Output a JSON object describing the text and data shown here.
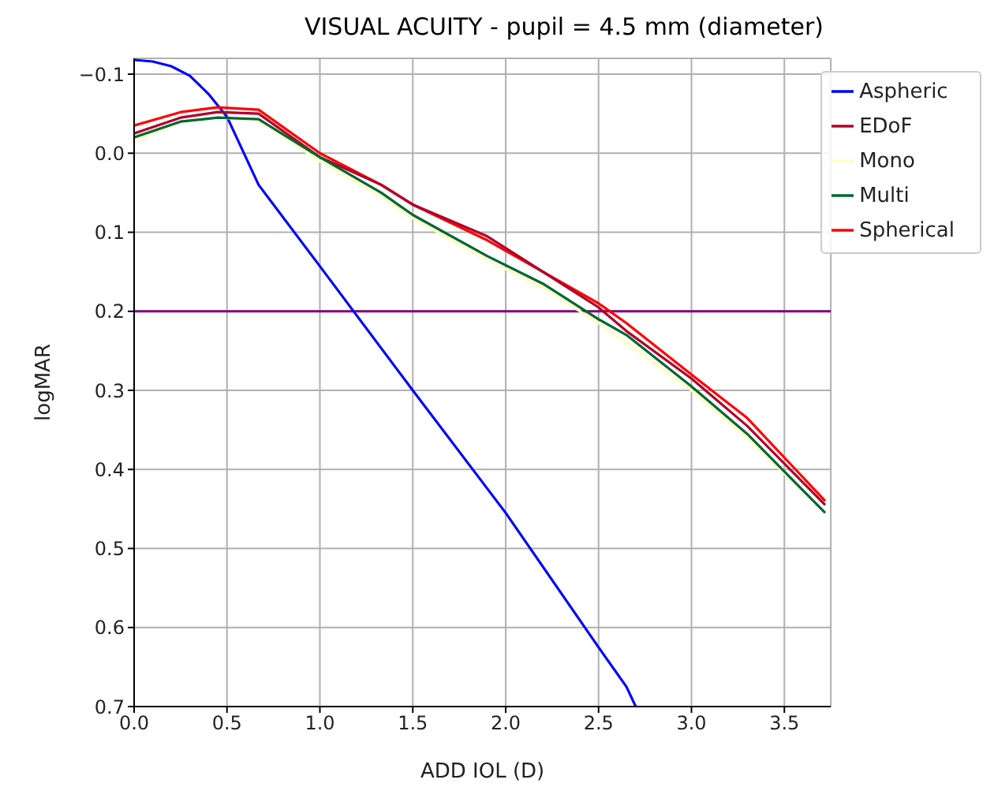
{
  "chart_data": {
    "type": "line",
    "title": "VISUAL ACUITY - pupil = 4.5 mm (diameter)",
    "xlabel": "ADD IOL (D)",
    "ylabel": "logMAR",
    "xlim": [
      0,
      3.75
    ],
    "xticks": [
      {
        "value": 0,
        "label": "0.0"
      },
      {
        "value": 0.5,
        "label": "0.5"
      },
      {
        "value": 1,
        "label": "1.0"
      },
      {
        "value": 1.5,
        "label": "1.5"
      },
      {
        "value": 2,
        "label": "2.0"
      },
      {
        "value": 2.5,
        "label": "2.5"
      },
      {
        "value": 3,
        "label": "3.0"
      },
      {
        "value": 3.5,
        "label": "3.5"
      }
    ],
    "ylim": [
      0.7,
      -0.12
    ],
    "yticks": [
      {
        "value": -0.1,
        "label": "−0.1"
      },
      {
        "value": 0,
        "label": "0.0"
      },
      0.1,
      0.2,
      0.3,
      0.4,
      0.5,
      0.6,
      0.7
    ],
    "grid": true,
    "legend": "top right",
    "marker": "none",
    "line_style": "solid",
    "ref_lines": [
      {
        "axis": "y",
        "value": 0.2,
        "color": "#800080"
      }
    ],
    "series": [
      {
        "name": "Aspheric",
        "color": "#0000ff",
        "x": [
          0,
          0.1,
          0.2,
          0.3,
          0.4,
          0.5,
          0.67,
          1.0,
          1.5,
          2.0,
          2.5,
          2.65,
          2.7
        ],
        "values": [
          -0.118,
          -0.116,
          -0.11,
          -0.098,
          -0.075,
          -0.046,
          0.04,
          0.143,
          0.3,
          0.455,
          0.625,
          0.675,
          0.7
        ]
      },
      {
        "name": "Spherical",
        "color": "#ff0000",
        "x": [
          0,
          0.25,
          0.45,
          0.67,
          1.0,
          1.33,
          1.5,
          1.9,
          2.2,
          2.5,
          2.65,
          3.0,
          3.3,
          3.72
        ],
        "values": [
          -0.035,
          -0.052,
          -0.058,
          -0.055,
          0.0,
          0.04,
          0.065,
          0.11,
          0.15,
          0.19,
          0.215,
          0.28,
          0.335,
          0.44
        ]
      },
      {
        "name": "EDoF",
        "color": "#b0002a",
        "x": [
          0,
          0.25,
          0.45,
          0.67,
          1.0,
          1.33,
          1.5,
          1.9,
          2.2,
          2.5,
          2.65,
          3.0,
          3.3,
          3.72
        ],
        "values": [
          -0.025,
          -0.045,
          -0.052,
          -0.05,
          0.005,
          0.04,
          0.065,
          0.105,
          0.15,
          0.195,
          0.225,
          0.285,
          0.345,
          0.445
        ]
      },
      {
        "name": "Mono",
        "color": "#ffffc0",
        "x": [
          0,
          0.25,
          0.45,
          0.67,
          1.0,
          1.33,
          1.5,
          1.9,
          2.2,
          2.5,
          2.65,
          3.0,
          3.3,
          3.72
        ],
        "values": [
          -0.015,
          -0.04,
          -0.045,
          -0.042,
          0.01,
          0.055,
          0.082,
          0.135,
          0.17,
          0.215,
          0.24,
          0.3,
          0.36,
          0.455
        ]
      },
      {
        "name": "Multi",
        "color": "#006633",
        "x": [
          0,
          0.25,
          0.45,
          0.67,
          1.0,
          1.33,
          1.5,
          1.9,
          2.2,
          2.5,
          2.65,
          3.0,
          3.3,
          3.72
        ],
        "values": [
          -0.02,
          -0.04,
          -0.045,
          -0.043,
          0.005,
          0.05,
          0.078,
          0.13,
          0.165,
          0.21,
          0.23,
          0.295,
          0.355,
          0.455
        ]
      }
    ]
  }
}
